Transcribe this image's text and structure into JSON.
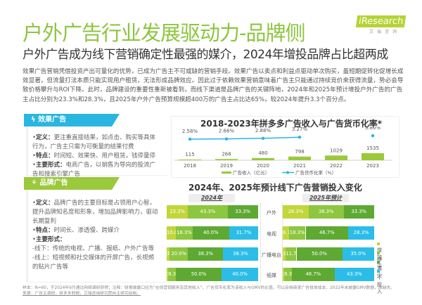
{
  "header": {
    "title": "户外广告行业发展驱动力-品牌侧",
    "subtitle": "户外广告成为线下营销确定性最强的媒介，2024年增投品牌占比超两成",
    "logo_text": "iResearch",
    "logo_sub": "艾瑞咨询"
  },
  "body_text": "效果广告营销凭借投资产出可量化的优势，已成为广告主不可或缺的营销手段。效果广告以卖点和利益点驱动单次购买，虽短期促转化促增长成效显著，但流量打法本质只能实现用户租赁，无法形成品牌效应。因此过于依赖效果营销意味着广告主只能通过持续竞价来获得流量，势必会导致价格攀升与ROI下降。此时，品牌建设的重要性重新被看到，而线下渠道是品牌广告的关键阵地，2024年和2025年预计增投户外广告的广告主占比分别为23.3%和28.3%，且2025年户外广告预算规模超400万的广告主占比达65%，较2024年提升3.3个百分点。",
  "panels": [
    {
      "title": "效果广告",
      "icon": "fire-icon",
      "color": "#29b6e0",
      "items": [
        {
          "label": "定义：",
          "text": "更注重直接结果，如点击、购买等具体行为，广告主只需为可衡量的结果付费"
        },
        {
          "label": "特点：",
          "text": "时间短、效果快、用户租赁，钱停量停"
        },
        {
          "label": "主要形式：",
          "text": "电商广告，以销售为导向的投流广告和搜索引擎广告"
        }
      ]
    },
    {
      "title": "品牌广告",
      "icon": "network-icon",
      "color": "#9ac93b",
      "items": [
        {
          "label": "定义：",
          "text": "品牌广告的主要目标是占领用户心智，提升品牌知名度和形象，增加品牌影响力，驱动长期复利"
        },
        {
          "label": "特点：",
          "text": "时间长、渗透慢、跨媒介"
        },
        {
          "label": "主要形式：",
          "text": ""
        },
        {
          "label": "",
          "text": "-线下：传统的电视、广播、报纸、户外广告等"
        },
        {
          "label": "",
          "text": "-线上：短视频和社交媒体的开屏广告，长视频的贴片广告等"
        }
      ]
    }
  ],
  "chart_data": [
    {
      "type": "bar",
      "title": "2018-2023年拼多多广告收入与广告货币化率*",
      "categories": [
        "2018",
        "2019",
        "2020",
        "2021",
        "2022",
        "2023"
      ],
      "series": [
        {
          "name": "广告收入（亿元）",
          "type": "bar",
          "values": [
            115,
            268,
            480,
            798,
            1029,
            1535
          ],
          "color": "#9ac93b"
        },
        {
          "name": "广告货币化率（%）",
          "type": "line",
          "values": [
            2.58,
            2.66,
            2.88,
            3.27,
            null,
            3.8
          ],
          "labels": [
            "2.58%",
            "2.66%",
            "2.88%",
            "3.27%",
            "",
            "3.80%"
          ],
          "color": "#29b6e0"
        }
      ],
      "legend": "bottom",
      "grid": false
    },
    {
      "type": "bar",
      "stacked": true,
      "orientation": "horizontal",
      "title": "2024年、2025年预计线下广告营销投入变化",
      "panels": [
        "2024年",
        "2025年预计"
      ],
      "categories": [
        "户外",
        "电视",
        "广播电台",
        "纸媒"
      ],
      "legend_position": "right",
      "series": [
        {
          "name": "增加",
          "color": "#c2d63a",
          "values_2024": [
            23.3,
            10.0,
            3.3,
            1.7
          ],
          "values_2025": [
            28.3,
            6.7,
            3.3,
            1.7
          ]
        },
        {
          "name": "持平",
          "color": "#8dc63f",
          "values_2024": [
            43.3,
            18.3,
            20.0,
            8.3
          ],
          "values_2025": [
            38.3,
            18.3,
            11.7,
            8.3
          ]
        },
        {
          "name": "减少",
          "color": "#5ea932",
          "values_2024": [
            33.3,
            40.0,
            38.3,
            50.0
          ],
          "values_2025": [
            33.3,
            46.7,
            50.0,
            46.7
          ]
        },
        {
          "name": "不投入",
          "color": "#2bbde8",
          "values_2024": [
            0,
            31.7,
            38.3,
            40.0
          ],
          "values_2025": [
            0,
            28.3,
            35.0,
            43.3
          ]
        }
      ]
    }
  ],
  "footnote": {
    "note": "样本：N=60，于2024年9月通过网络调研获得；注释：财报披露口径为“在线营销服务及其他收入”，广告货币化率为该收入与GMV的比值，可以反映商家广告投放成本，2022年未披露GMV数据，故缺失。",
    "source": "来源：广告主调研，拼多多财报，艾瑞咨询研究院自主研究绘制。"
  }
}
